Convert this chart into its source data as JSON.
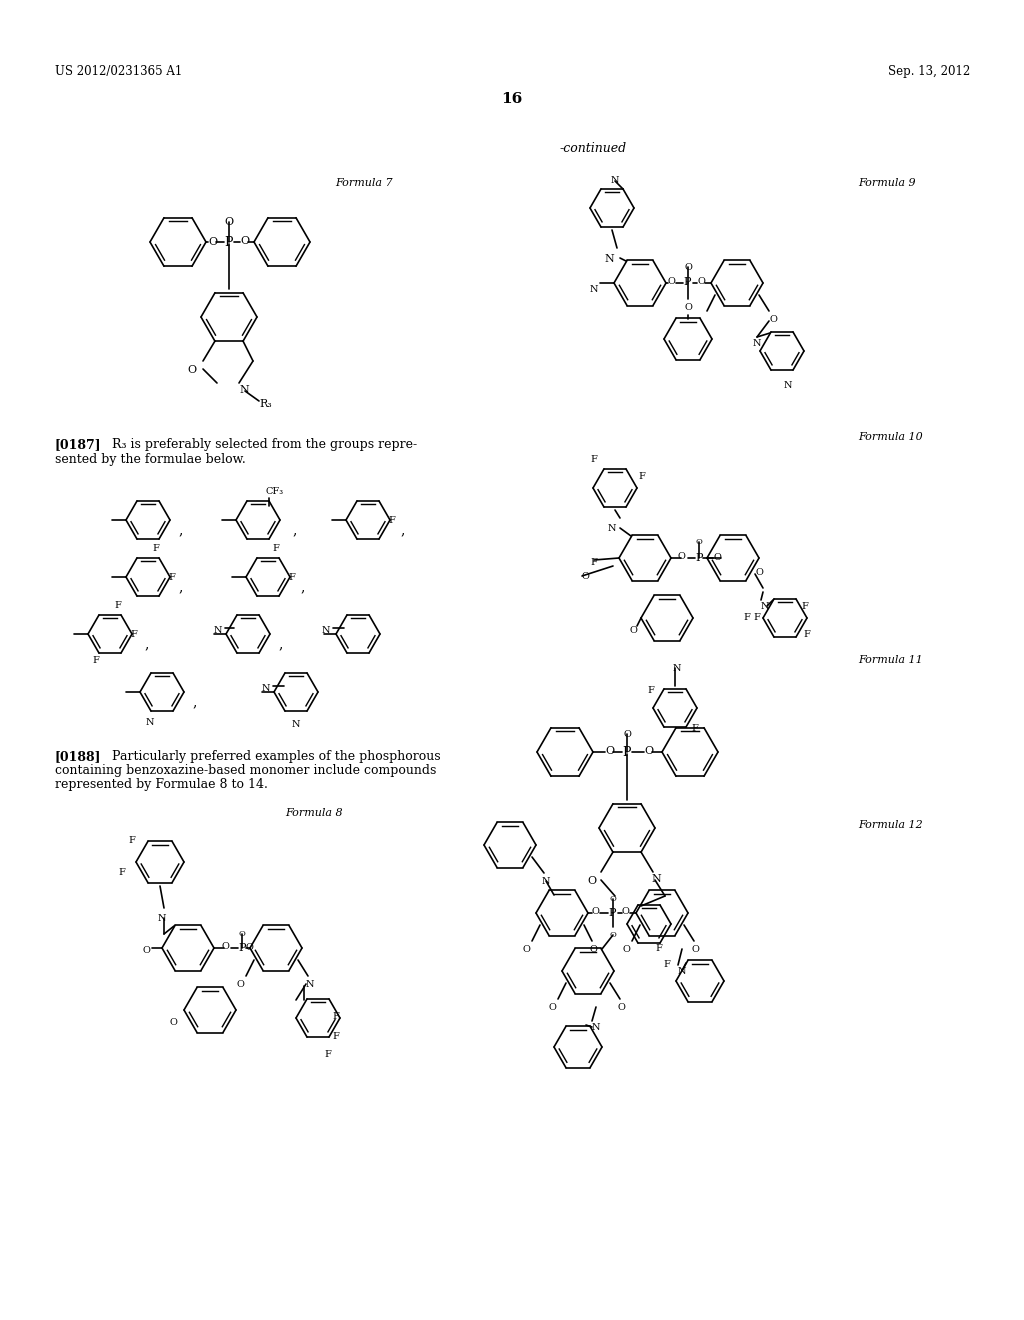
{
  "page_number": "16",
  "header_left": "US 2012/0231365 A1",
  "header_right": "Sep. 13, 2012",
  "continued_text": "-continued",
  "background_color": "#ffffff",
  "text_color": "#000000"
}
